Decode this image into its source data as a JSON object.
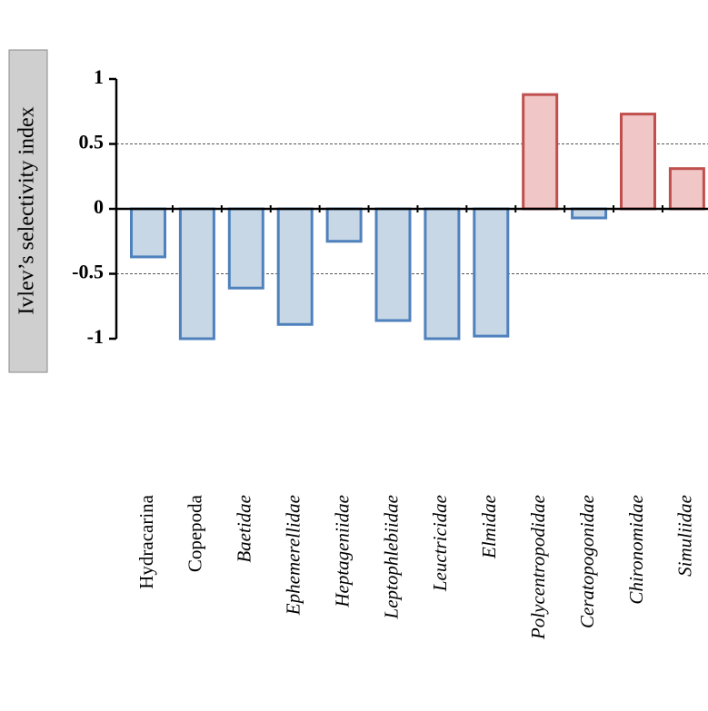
{
  "chart_data": {
    "type": "bar",
    "y_label": "Ivlev’s selectivity index",
    "categories": [
      "Hydracarina",
      "Copepoda",
      "Baetidae",
      "Ephemerellidae",
      "Heptageniidae",
      "Leptophlebiidae",
      "Leuctricidae",
      "Elmidae",
      "Polycentropodidae",
      "Ceratopogonidae",
      "Chironomidae",
      "Simuliidae"
    ],
    "italic_categories": [
      false,
      false,
      true,
      true,
      true,
      true,
      true,
      true,
      true,
      true,
      true,
      true
    ],
    "values": [
      -0.37,
      -1.0,
      -0.61,
      -0.89,
      -0.25,
      -0.86,
      -1.0,
      -0.98,
      0.88,
      -0.07,
      0.73,
      0.31
    ],
    "colors": {
      "negative": {
        "fill": "#c8d7e5",
        "edge": "#4f81bd"
      },
      "positive": {
        "fill": "#f0c6c6",
        "edge": "#c0504d"
      }
    },
    "ylim": [
      -1,
      1
    ],
    "yticks": [
      1,
      0.5,
      0,
      -0.5,
      -1
    ],
    "reference_lines": [
      0.5,
      -0.5
    ]
  }
}
